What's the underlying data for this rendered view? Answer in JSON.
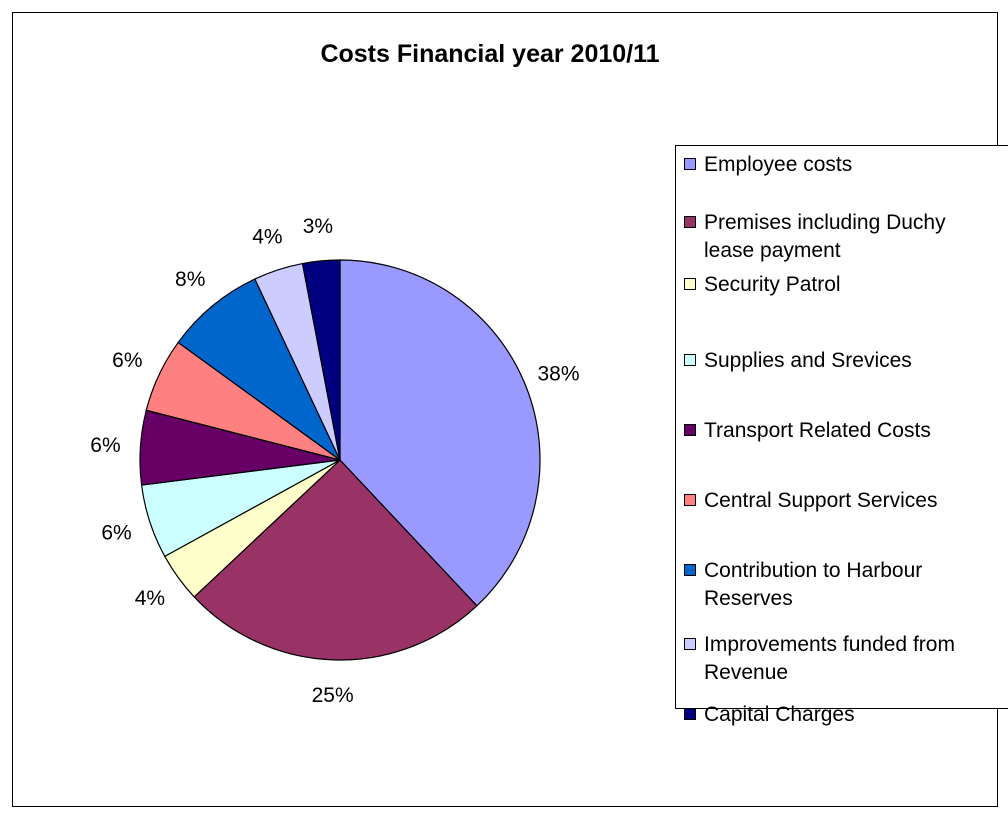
{
  "chart_data": {
    "type": "pie",
    "title": "Costs Financial year 2010/11",
    "legend_position": "right",
    "categories": [
      "Employee costs",
      "Premises including Duchy lease payment",
      "Security Patrol",
      "Supplies and Srevices",
      "Transport Related Costs",
      "Central Support Services",
      "Contribution to Harbour Reserves",
      "Improvements funded from Revenue",
      "Capital Charges"
    ],
    "legend_lines": [
      [
        "Employee costs"
      ],
      [
        "Premises including Duchy",
        "lease payment"
      ],
      [
        "Security Patrol"
      ],
      [
        "Supplies and Srevices"
      ],
      [
        "Transport Related Costs"
      ],
      [
        "Central Support Services"
      ],
      [
        "Contribution to Harbour",
        "Reserves"
      ],
      [
        "Improvements funded from",
        "Revenue"
      ],
      [
        "Capital Charges"
      ]
    ],
    "values": [
      38,
      25,
      4,
      6,
      6,
      6,
      8,
      4,
      3
    ],
    "data_labels": [
      "38%",
      "25%",
      "4%",
      "6%",
      "6%",
      "6%",
      "8%",
      "4%",
      "3%"
    ],
    "colors": [
      "#9999FF",
      "#993366",
      "#FFFFCC",
      "#CCFFFF",
      "#660066",
      "#FF8080",
      "#0066CC",
      "#CCCCFF",
      "#000080"
    ]
  }
}
